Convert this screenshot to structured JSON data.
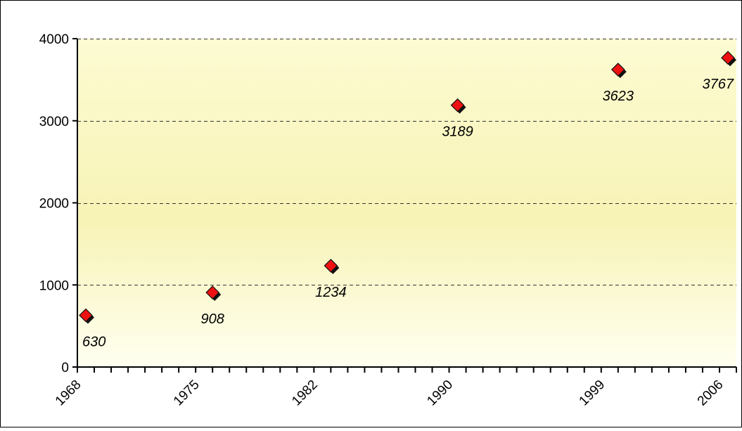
{
  "chart_data": {
    "type": "scatter",
    "title": "",
    "xlabel": "",
    "ylabel": "",
    "x": [
      1968.5,
      1976,
      1983,
      1990.5,
      2000,
      2006.5
    ],
    "y": [
      630,
      908,
      1234,
      3189,
      3623,
      3767
    ],
    "data_labels": [
      "630",
      "908",
      "1234",
      "3189",
      "3623",
      "3767"
    ],
    "xlim": [
      1968,
      2007
    ],
    "ylim": [
      0,
      4000
    ],
    "x_tick_labels": [
      {
        "value": 1968,
        "label": "1968"
      },
      {
        "value": 1975,
        "label": "1975"
      },
      {
        "value": 1982,
        "label": "1982"
      },
      {
        "value": 1990,
        "label": "1990"
      },
      {
        "value": 1999,
        "label": "1999"
      },
      {
        "value": 2006,
        "label": "2006"
      }
    ],
    "x_minor_tick_step": 1,
    "y_ticks": [
      0,
      1000,
      2000,
      3000,
      4000
    ],
    "y_tick_labels": [
      "0",
      "1000",
      "2000",
      "3000",
      "4000"
    ],
    "grid": "horizontal-dashed",
    "legend": "none",
    "colors": {
      "marker_fill": "#ee1111",
      "marker_shadow": "#111111",
      "plot_background_top": "#fdfbd2",
      "plot_background_mid": "#f7f3b6",
      "plot_background_bottom": "#fffff0",
      "grid": "#333333"
    }
  }
}
